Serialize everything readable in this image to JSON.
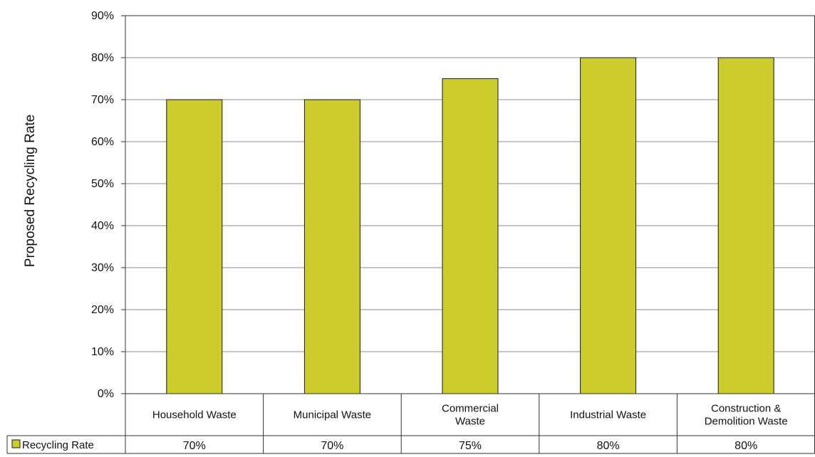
{
  "chart_data": {
    "type": "bar",
    "categories": [
      "Household Waste",
      "Municipal Waste",
      "Commercial Waste",
      "Industrial Waste",
      "Construction & Demolition Waste"
    ],
    "category_label_lines": [
      [
        "Household Waste"
      ],
      [
        "Municipal Waste"
      ],
      [
        "Commercial",
        "Waste"
      ],
      [
        "Industrial Waste"
      ],
      [
        "Construction &",
        "Demolition Waste"
      ]
    ],
    "series": [
      {
        "name": "Recycling Rate",
        "values": [
          70,
          70,
          75,
          80,
          80
        ],
        "color": "#cccc2e"
      }
    ],
    "data_table": [
      "70%",
      "70%",
      "75%",
      "80%",
      "80%"
    ],
    "title": "",
    "xlabel": "",
    "ylabel": "Proposed Recycling Rate",
    "ylim": [
      0,
      90
    ],
    "yticks": [
      0,
      10,
      20,
      30,
      40,
      50,
      60,
      70,
      80,
      90
    ],
    "ytick_format": "percent",
    "grid": true,
    "legend": "data-table-left"
  }
}
